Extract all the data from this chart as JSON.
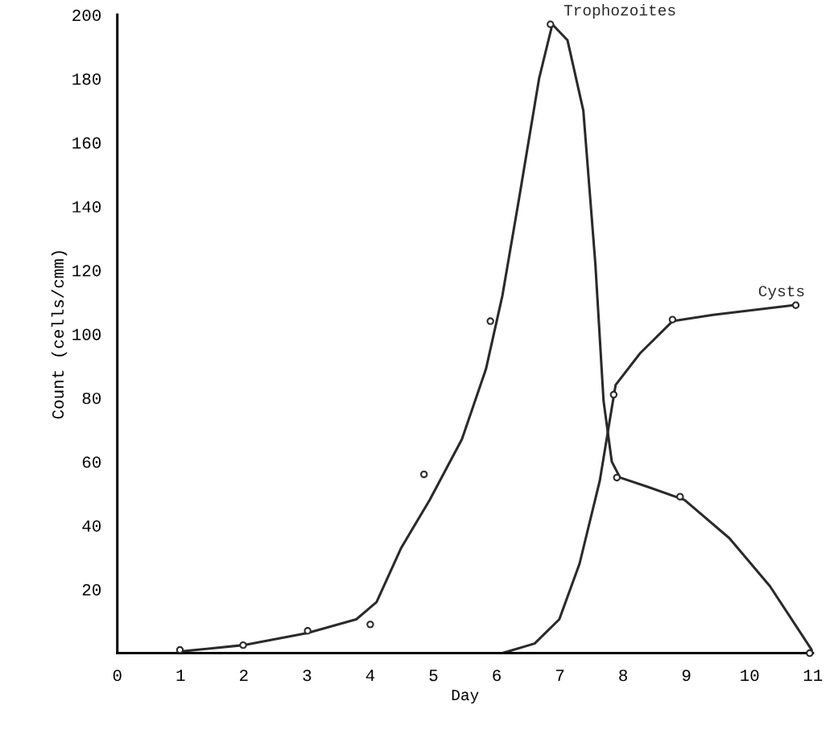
{
  "chart_data": {
    "type": "line",
    "xlabel": "Day",
    "ylabel": "Count (cells/cmm)",
    "xlim": [
      0,
      11
    ],
    "ylim": [
      0,
      200
    ],
    "xticks": [
      0,
      1,
      2,
      3,
      4,
      5,
      6,
      7,
      8,
      9,
      10,
      11
    ],
    "yticks": [
      20,
      40,
      60,
      80,
      100,
      120,
      140,
      160,
      180,
      200
    ],
    "grid": false,
    "legend": false,
    "marker": "none",
    "line_style": "solid",
    "series": [
      {
        "name": "Trophozoites",
        "color": "#2a2a2a",
        "x": [
          0.99,
          1.99,
          3.01,
          3.78,
          4.1,
          4.49,
          4.94,
          5.45,
          5.83,
          6.09,
          6.35,
          6.67,
          6.88,
          7.12,
          7.37,
          7.56,
          7.69,
          7.82,
          7.95,
          8.4,
          8.97,
          9.68,
          10.32,
          11
        ],
        "values": [
          0.5,
          2.5,
          6.3,
          10.6,
          16,
          33,
          48,
          67,
          89,
          112,
          142,
          180,
          197,
          192,
          170,
          122,
          79,
          60,
          55,
          52,
          48,
          36,
          21,
          0.5
        ]
      },
      {
        "name": "Cysts",
        "color": "#2a2a2a",
        "x": [
          6.09,
          6.6,
          6.99,
          7.31,
          7.63,
          7.88,
          8.27,
          8.78,
          9.42,
          10.7
        ],
        "values": [
          0,
          3,
          10.6,
          28,
          54,
          84,
          94,
          104,
          106,
          109
        ]
      },
      {
        "type": "scatter",
        "marker": "circle",
        "color": "#2a2a2a",
        "x": [
          0.99,
          1.99,
          3.01,
          4.0,
          4.85,
          5.9,
          6.85,
          7.9,
          8.9,
          10.95
        ],
        "values": [
          1,
          2.5,
          7,
          9,
          56,
          104,
          197,
          55,
          49,
          0
        ]
      },
      {
        "type": "scatter",
        "marker": "circle",
        "color": "#2a2a2a",
        "x": [
          7.85,
          8.78,
          10.73
        ],
        "values": [
          81,
          104.5,
          109
        ]
      }
    ]
  }
}
